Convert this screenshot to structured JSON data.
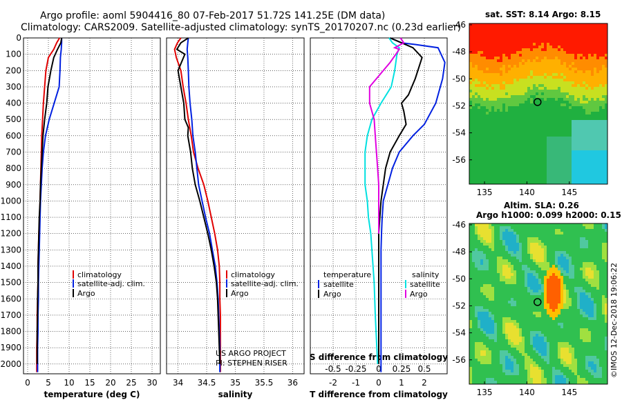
{
  "header": {
    "line1": "Argo profile: aoml 5904416_80 07-Feb-2017 51.72S 141.25E (DM data)",
    "line2": "Climatology: CARS2009. Satellite-adjusted climatology: synTS_20170207.nc (0.23d earlier)"
  },
  "colors": {
    "climatology": "#e00000",
    "satellite": "#0020e0",
    "argo": "#000000",
    "salinity_sat": "#00e0e0",
    "salinity_argo": "#e000e0"
  },
  "legends": {
    "temperature": [
      "climatology",
      "satellite-adj. clim.",
      "Argo"
    ],
    "salinity": [
      "climatology",
      "satellite-adj. clim.",
      "Argo"
    ],
    "difference": {
      "temperature_title": "temperature",
      "salinity_title": "salinity",
      "temperature_items": [
        "satellite",
        "Argo"
      ],
      "salinity_items": [
        "satellite",
        "Argo"
      ]
    }
  },
  "credits": {
    "line1": "US ARGO PROJECT",
    "line2": "PI: STEPHEN RISER"
  },
  "sst": {
    "title": "sat. SST: 8.14 Argo: 8.15"
  },
  "alt": {
    "title1": "Altim. SLA: 0.26",
    "title2": "Argo h1000: 0.099 h2000: 0.15"
  },
  "watermark": "©IMOS 12-Dec-2018 19:06:22",
  "chart_data": [
    {
      "type": "line",
      "xlabel": "temperature (deg C)",
      "xlim": [
        -1,
        32
      ],
      "xticks": [
        0,
        5,
        10,
        15,
        20,
        25,
        30
      ],
      "ylim": [
        2060,
        0
      ],
      "yticks": [
        0,
        100,
        200,
        300,
        400,
        500,
        600,
        700,
        800,
        900,
        1000,
        1100,
        1200,
        1300,
        1400,
        1500,
        1600,
        1700,
        1800,
        1900,
        2000
      ],
      "series": [
        {
          "name": "climatology",
          "color": "#e00000",
          "x": [
            7.7,
            7.0,
            6.3,
            5.0,
            4.4,
            4.1,
            3.8,
            3.6,
            3.4,
            3.3,
            3.2,
            3.1,
            3.0,
            2.9,
            2.7,
            2.6,
            2.5,
            2.5,
            2.4,
            2.3,
            2.3,
            2.2,
            2.2
          ],
          "y": [
            0,
            30,
            70,
            120,
            200,
            300,
            400,
            500,
            600,
            700,
            800,
            900,
            1000,
            1100,
            1200,
            1300,
            1400,
            1500,
            1600,
            1700,
            1800,
            1900,
            2050
          ]
        },
        {
          "name": "satellite-adj. clim.",
          "color": "#0020e0",
          "x": [
            8.2,
            8.2,
            8.1,
            7.9,
            7.8,
            7.6,
            6.4,
            5.2,
            4.3,
            3.8,
            3.5,
            3.3,
            3.1,
            3.0,
            2.9,
            2.8,
            2.7,
            2.6,
            2.6,
            2.5,
            2.5,
            2.4,
            2.4
          ],
          "y": [
            0,
            30,
            70,
            120,
            200,
            300,
            400,
            500,
            600,
            700,
            800,
            900,
            1000,
            1100,
            1200,
            1300,
            1400,
            1500,
            1600,
            1700,
            1800,
            1900,
            2050
          ]
        },
        {
          "name": "Argo",
          "color": "#000000",
          "x": [
            8.2,
            8.0,
            7.2,
            6.3,
            5.6,
            4.9,
            4.6,
            4.1,
            3.7,
            3.5,
            3.3,
            3.1,
            3.0,
            2.8,
            2.7,
            2.6,
            2.5,
            2.5,
            2.4,
            2.4,
            2.3,
            2.3
          ],
          "y": [
            0,
            30,
            70,
            120,
            200,
            300,
            400,
            500,
            600,
            700,
            800,
            900,
            1000,
            1100,
            1200,
            1300,
            1400,
            1500,
            1600,
            1700,
            1800,
            2000
          ]
        }
      ]
    },
    {
      "type": "line",
      "xlabel": "salinity",
      "xlim": [
        33.8,
        36.2
      ],
      "xticks": [
        34,
        34.5,
        35,
        35.5,
        36
      ],
      "ylim": [
        2060,
        0
      ],
      "series": [
        {
          "name": "climatology",
          "color": "#e00000",
          "x": [
            34.05,
            33.99,
            33.94,
            33.97,
            34.05,
            34.09,
            34.14,
            34.18,
            34.23,
            34.27,
            34.35,
            34.45,
            34.52,
            34.58,
            34.64,
            34.69,
            34.72,
            34.73,
            34.73,
            34.74,
            34.74,
            34.74,
            34.74
          ],
          "y": [
            0,
            30,
            70,
            120,
            200,
            300,
            400,
            500,
            600,
            700,
            800,
            900,
            1000,
            1100,
            1200,
            1300,
            1400,
            1500,
            1600,
            1700,
            1800,
            1900,
            2050
          ]
        },
        {
          "name": "satellite-adj. clim.",
          "color": "#0020e0",
          "x": [
            34.18,
            34.17,
            34.16,
            34.17,
            34.18,
            34.19,
            34.21,
            34.24,
            34.26,
            34.3,
            34.33,
            34.36,
            34.42,
            34.48,
            34.55,
            34.6,
            34.65,
            34.68,
            34.7,
            34.71,
            34.72,
            34.73,
            34.73
          ],
          "y": [
            0,
            30,
            70,
            120,
            200,
            300,
            400,
            500,
            600,
            700,
            800,
            900,
            1000,
            1100,
            1200,
            1300,
            1400,
            1500,
            1600,
            1700,
            1800,
            1900,
            2050
          ]
        },
        {
          "name": "Argo",
          "color": "#000000",
          "x": [
            34.18,
            34.05,
            33.98,
            34.12,
            34.0,
            34.05,
            34.1,
            34.12,
            34.18,
            34.17,
            34.22,
            34.25,
            34.3,
            34.38,
            34.45,
            34.52,
            34.58,
            34.63,
            34.67,
            34.69,
            34.71,
            34.73
          ],
          "y": [
            0,
            30,
            70,
            100,
            200,
            300,
            400,
            500,
            550,
            600,
            700,
            800,
            900,
            1000,
            1100,
            1200,
            1300,
            1400,
            1500,
            1600,
            1800,
            2000
          ]
        }
      ]
    },
    {
      "type": "line",
      "xlabel": "T difference from climatology",
      "xlabel_top": "S difference from climatology",
      "xlim": [
        -3,
        3
      ],
      "xticks": [
        -2,
        -1,
        0,
        1,
        2
      ],
      "xticks_top": [
        "-0.5",
        "-0.25",
        "0",
        "0.25",
        "0.5"
      ],
      "ylim": [
        2060,
        0
      ],
      "series": [
        {
          "name": "temperature satellite",
          "color": "#0020e0",
          "x": [
            0.5,
            1.0,
            1.6,
            2.6,
            2.9,
            2.8,
            2.5,
            2.0,
            1.5,
            0.9,
            0.6,
            0.4,
            0.2,
            0.15,
            0.12,
            0.1,
            0.1,
            0.1,
            0.1,
            0.1,
            0.1,
            0.1
          ],
          "y": [
            0,
            30,
            40,
            60,
            150,
            250,
            400,
            530,
            600,
            700,
            800,
            900,
            1000,
            1100,
            1200,
            1300,
            1400,
            1500,
            1600,
            1700,
            1800,
            2050
          ]
        },
        {
          "name": "temperature Argo",
          "color": "#000000",
          "x": [
            0.5,
            1.0,
            1.5,
            1.9,
            1.6,
            1.3,
            1.0,
            1.1,
            1.2,
            0.9,
            0.5,
            0.3,
            0.2,
            0.1,
            0.05,
            0.0,
            0.0,
            0.0,
            0.0,
            0.0,
            0.0
          ],
          "y": [
            0,
            30,
            60,
            120,
            250,
            350,
            400,
            450,
            530,
            600,
            700,
            800,
            900,
            1000,
            1100,
            1200,
            1300,
            1400,
            1500,
            1700,
            2000
          ]
        },
        {
          "name": "salinity satellite",
          "color": "#00e0e0",
          "x": [
            0.45,
            0.6,
            0.9,
            0.8,
            0.7,
            0.55,
            0.1,
            -0.3,
            -0.5,
            -0.6,
            -0.6,
            -0.6,
            -0.5,
            -0.45,
            -0.35,
            -0.3,
            -0.2,
            -0.15,
            -0.05
          ],
          "y": [
            0,
            30,
            60,
            100,
            200,
            300,
            400,
            500,
            600,
            700,
            800,
            900,
            1000,
            1100,
            1200,
            1300,
            1500,
            1700,
            2000
          ]
        },
        {
          "name": "salinity Argo",
          "color": "#e000e0",
          "x": [
            0.95,
            1.1,
            0.7,
            0.9,
            0.8,
            0.5,
            -0.4,
            -0.4,
            -0.2,
            -0.15,
            -0.1,
            -0.05,
            0.0,
            0.0,
            0.0
          ],
          "y": [
            0,
            30,
            60,
            70,
            90,
            150,
            300,
            400,
            500,
            600,
            700,
            800,
            900,
            1000,
            1200
          ]
        }
      ]
    },
    {
      "type": "heatmap",
      "title": "sat. SST: 8.14 Argo: 8.15",
      "xlim": [
        133.2,
        149.5
      ],
      "ylim": [
        -57.8,
        -45.9
      ],
      "xticks": [
        135,
        140,
        145
      ],
      "yticks": [
        -46,
        -48,
        -50,
        -52,
        -54,
        -56
      ],
      "marker": {
        "lon": 141.25,
        "lat": -51.72
      }
    },
    {
      "type": "heatmap",
      "title": "Altim. SLA: 0.26",
      "subtitle": "Argo h1000: 0.099 h2000: 0.15",
      "xlim": [
        133.2,
        149.5
      ],
      "ylim": [
        -57.8,
        -45.9
      ],
      "xticks": [
        135,
        140,
        145
      ],
      "yticks": [
        -46,
        -48,
        -50,
        -52,
        -54,
        -56
      ],
      "marker": {
        "lon": 141.25,
        "lat": -51.72
      }
    }
  ]
}
